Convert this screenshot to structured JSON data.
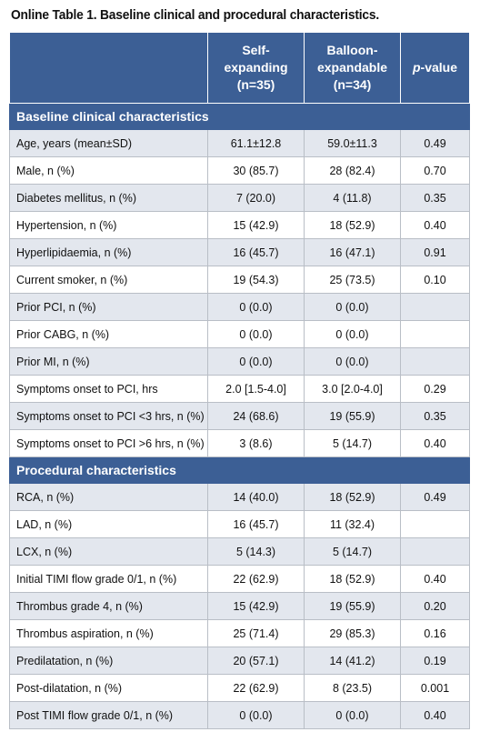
{
  "title": "Online Table 1. Baseline clinical and procedural characteristics.",
  "columns": {
    "self_line1": "Self-",
    "self_line2": "expanding",
    "self_line3": "(n=35)",
    "balloon_line1": "Balloon-",
    "balloon_line2": "expandable",
    "balloon_line3": "(n=34)",
    "pvalue_italic": "p",
    "pvalue_rest": "-value"
  },
  "sections": [
    {
      "heading": "Baseline clinical characteristics",
      "rows": [
        {
          "label": "Age, years (mean±SD)",
          "self": "61.1±12.8",
          "balloon": "59.0±11.3",
          "p": "0.49"
        },
        {
          "label": "Male, n (%)",
          "self": "30 (85.7)",
          "balloon": "28 (82.4)",
          "p": "0.70"
        },
        {
          "label": "Diabetes mellitus, n (%)",
          "self": "7 (20.0)",
          "balloon": "4 (11.8)",
          "p": "0.35"
        },
        {
          "label": "Hypertension, n (%)",
          "self": "15 (42.9)",
          "balloon": "18 (52.9)",
          "p": "0.40"
        },
        {
          "label": "Hyperlipidaemia, n (%)",
          "self": "16 (45.7)",
          "balloon": "16 (47.1)",
          "p": "0.91"
        },
        {
          "label": "Current smoker, n (%)",
          "self": "19 (54.3)",
          "balloon": "25 (73.5)",
          "p": "0.10"
        },
        {
          "label": "Prior PCI, n (%)",
          "self": "0 (0.0)",
          "balloon": "0 (0.0)",
          "p": ""
        },
        {
          "label": "Prior CABG, n (%)",
          "self": "0 (0.0)",
          "balloon": "0 (0.0)",
          "p": ""
        },
        {
          "label": "Prior MI, n (%)",
          "self": "0 (0.0)",
          "balloon": "0 (0.0)",
          "p": ""
        },
        {
          "label": "Symptoms onset to PCI, hrs",
          "self": "2.0 [1.5-4.0]",
          "balloon": "3.0 [2.0-4.0]",
          "p": "0.29"
        },
        {
          "label": "Symptoms onset to PCI <3 hrs, n (%)",
          "self": "24 (68.6)",
          "balloon": "19 (55.9)",
          "p": "0.35"
        },
        {
          "label": "Symptoms onset to PCI >6 hrs, n (%)",
          "self": "3 (8.6)",
          "balloon": "5 (14.7)",
          "p": "0.40"
        }
      ]
    },
    {
      "heading": "Procedural characteristics",
      "rows": [
        {
          "label": "RCA, n (%)",
          "self": "14 (40.0)",
          "balloon": "18 (52.9)",
          "p": "0.49"
        },
        {
          "label": "LAD, n (%)",
          "self": "16 (45.7)",
          "balloon": "11 (32.4)",
          "p": ""
        },
        {
          "label": "LCX, n (%)",
          "self": "5 (14.3)",
          "balloon": "5 (14.7)",
          "p": ""
        },
        {
          "label": "Initial TIMI flow grade 0/1, n (%)",
          "self": "22 (62.9)",
          "balloon": "18 (52.9)",
          "p": "0.40"
        },
        {
          "label": "Thrombus grade 4, n (%)",
          "self": "15 (42.9)",
          "balloon": "19 (55.9)",
          "p": "0.20"
        },
        {
          "label": "Thrombus aspiration, n (%)",
          "self": "25 (71.4)",
          "balloon": "29 (85.3)",
          "p": "0.16"
        },
        {
          "label": "Predilatation, n (%)",
          "self": "20 (57.1)",
          "balloon": "14 (41.2)",
          "p": "0.19"
        },
        {
          "label": "Post-dilatation, n (%)",
          "self": "22 (62.9)",
          "balloon": "8 (23.5)",
          "p": "0.001"
        },
        {
          "label": "Post TIMI flow grade 0/1, n (%)",
          "self": "0 (0.0)",
          "balloon": "0 (0.0)",
          "p": "0.40"
        }
      ]
    }
  ],
  "colors": {
    "header_bg": "#3c5f95",
    "alt_row_bg": "#e3e7ee"
  }
}
